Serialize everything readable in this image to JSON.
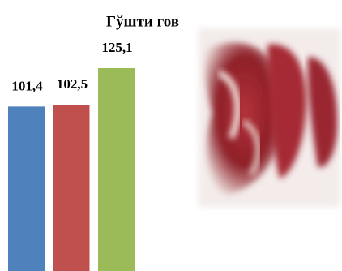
{
  "chart_data": {
    "type": "bar",
    "title": "Гўшти гов",
    "categories": [
      null,
      null,
      null
    ],
    "values": [
      101.4,
      102.5,
      125.1
    ],
    "value_labels": [
      "101,4",
      "102,5",
      "125,1"
    ],
    "colors": [
      "#4f81bd",
      "#c0504d",
      "#9bbb59"
    ]
  }
}
